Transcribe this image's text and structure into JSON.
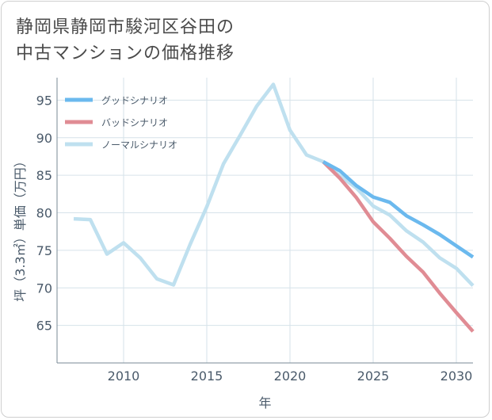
{
  "chart_data": {
    "type": "line",
    "title": "静岡県静岡市駿河区谷田の\n中古マンションの価格推移",
    "title_lines": [
      "静岡県静岡市駿河区谷田の",
      "中古マンションの価格推移"
    ],
    "xlabel": "年",
    "ylabel": "坪（3.3㎡）単価（万円）",
    "xlim": [
      2006,
      2031
    ],
    "ylim": [
      60,
      98
    ],
    "xticks": [
      2010,
      2015,
      2020,
      2025,
      2030
    ],
    "yticks": [
      65,
      70,
      75,
      80,
      85,
      90,
      95
    ],
    "grid": true,
    "legend_position": "top-left",
    "series": [
      {
        "name": "グッドシナリオ",
        "color": "#6bb9ee",
        "x": [
          2022,
          2023,
          2024,
          2025,
          2026,
          2027,
          2028,
          2029,
          2030,
          2031
        ],
        "y": [
          86.8,
          85.6,
          83.6,
          82.1,
          81.4,
          79.6,
          78.4,
          77.1,
          75.6,
          74.1
        ]
      },
      {
        "name": "バッドシナリオ",
        "color": "#e08c94",
        "x": [
          2022,
          2023,
          2024,
          2025,
          2026,
          2027,
          2028,
          2029,
          2030,
          2031
        ],
        "y": [
          86.8,
          84.6,
          82.0,
          78.8,
          76.6,
          74.2,
          72.1,
          69.3,
          66.7,
          64.2
        ]
      },
      {
        "name": "ノーマルシナリオ",
        "color": "#bfe0ef",
        "x": [
          2007,
          2008,
          2009,
          2010,
          2011,
          2012,
          2013,
          2014,
          2015,
          2016,
          2017,
          2018,
          2019,
          2020,
          2021,
          2022,
          2023,
          2024,
          2025,
          2026,
          2027,
          2028,
          2029,
          2030,
          2031
        ],
        "y": [
          79.2,
          79.1,
          74.5,
          76.0,
          74.0,
          71.2,
          70.4,
          75.8,
          80.8,
          86.5,
          90.3,
          94.2,
          97.1,
          91.0,
          87.7,
          86.8,
          84.9,
          83.3,
          80.9,
          79.7,
          77.6,
          76.1,
          74.0,
          72.6,
          70.3
        ]
      }
    ]
  }
}
